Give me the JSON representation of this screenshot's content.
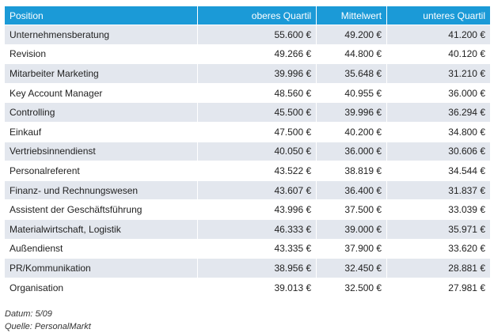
{
  "table": {
    "columns": [
      "Position",
      "oberes Quartil",
      "Mittelwert",
      "unteres Quartil"
    ],
    "rows": [
      [
        "Unternehmensberatung",
        "55.600 €",
        "49.200 €",
        "41.200 €"
      ],
      [
        "Revision",
        "49.266 €",
        "44.800 €",
        "40.120 €"
      ],
      [
        "Mitarbeiter Marketing",
        "39.996 €",
        "35.648 €",
        "31.210 €"
      ],
      [
        "Key Account Manager",
        "48.560 €",
        "40.955 €",
        "36.000 €"
      ],
      [
        "Controlling",
        "45.500 €",
        "39.996 €",
        "36.294 €"
      ],
      [
        "Einkauf",
        "47.500 €",
        "40.200 €",
        "34.800 €"
      ],
      [
        "Vertriebsinnendienst",
        "40.050 €",
        "36.000 €",
        "30.606 €"
      ],
      [
        "Personalreferent",
        "43.522 €",
        "38.819 €",
        "34.544 €"
      ],
      [
        "Finanz- und Rechnungswesen",
        "43.607 €",
        "36.400 €",
        "31.837 €"
      ],
      [
        "Assistent der Geschäftsführung",
        "43.996 €",
        "37.500 €",
        "33.039 €"
      ],
      [
        "Materialwirtschaft, Logistik",
        "46.333 €",
        "39.000 €",
        "35.971 €"
      ],
      [
        "Außendienst",
        "43.335 €",
        "37.900 €",
        "33.620 €"
      ],
      [
        "PR/Kommunikation",
        "38.956 €",
        "32.450 €",
        "28.881 €"
      ],
      [
        "Organisation",
        "39.013 €",
        "32.500 €",
        "27.981 €"
      ]
    ]
  },
  "footer": {
    "date": "Datum: 5/09",
    "source": "Quelle: PersonalMarkt"
  }
}
